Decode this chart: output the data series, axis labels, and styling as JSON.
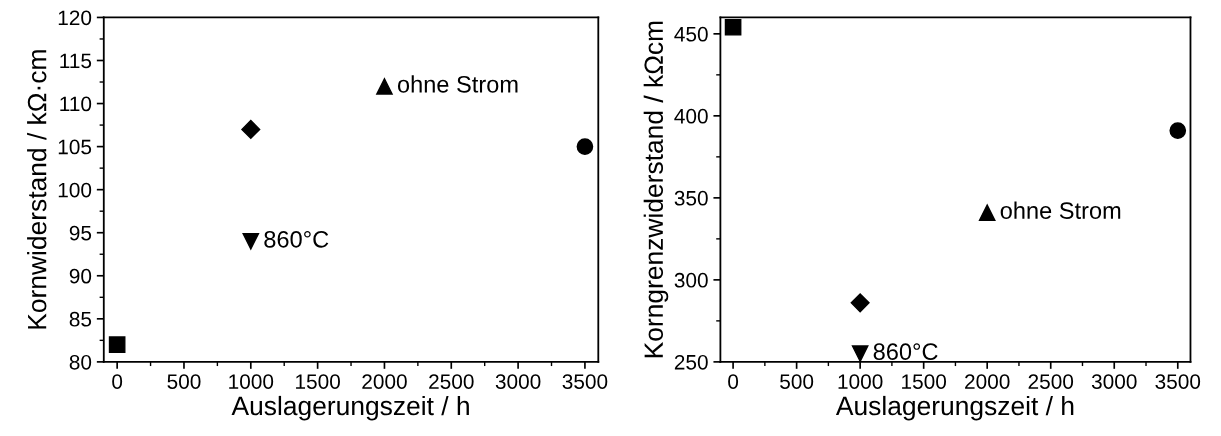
{
  "chart_data": [
    {
      "type": "scatter",
      "xlabel": "Auslagerungszeit / h",
      "ylabel": "Kornwiderstand / kΩ·cm",
      "xlim": [
        -100,
        3600
      ],
      "xticks": [
        0,
        500,
        1000,
        1500,
        2000,
        2500,
        3000,
        3500
      ],
      "ylim": [
        80,
        120
      ],
      "yticks": [
        80,
        85,
        90,
        95,
        100,
        105,
        110,
        115,
        120
      ],
      "grid": false,
      "legend": false,
      "series": [
        {
          "x": [
            0
          ],
          "values": [
            82
          ],
          "marker": "square",
          "color": "#000000"
        },
        {
          "x": [
            1000
          ],
          "values": [
            107
          ],
          "marker": "diamond",
          "color": "#000000"
        },
        {
          "name": "860°C",
          "x": [
            1000
          ],
          "values": [
            94
          ],
          "marker": "triangle_down",
          "color": "#000000"
        },
        {
          "name": "ohne Strom",
          "x": [
            2000
          ],
          "values": [
            112
          ],
          "marker": "triangle",
          "color": "#000000"
        },
        {
          "x": [
            3500
          ],
          "values": [
            105
          ],
          "marker": "circle",
          "color": "#000000"
        }
      ]
    },
    {
      "type": "scatter",
      "xlabel": "Auslagerungszeit / h",
      "ylabel": "Korngrenzwiderstand / kΩcm",
      "xlim": [
        -100,
        3600
      ],
      "xticks": [
        0,
        500,
        1000,
        1500,
        2000,
        2500,
        3000,
        3500
      ],
      "ylim": [
        250,
        460
      ],
      "yticks": [
        250,
        300,
        350,
        400,
        450
      ],
      "grid": false,
      "legend": false,
      "series": [
        {
          "x": [
            0
          ],
          "values": [
            454
          ],
          "marker": "square",
          "color": "#000000"
        },
        {
          "x": [
            1000
          ],
          "values": [
            286
          ],
          "marker": "diamond",
          "color": "#000000"
        },
        {
          "name": "860°C",
          "x": [
            1000
          ],
          "values": [
            255
          ],
          "marker": "triangle_down",
          "color": "#000000"
        },
        {
          "name": "ohne Strom",
          "x": [
            2000
          ],
          "values": [
            341
          ],
          "marker": "triangle",
          "color": "#000000"
        },
        {
          "x": [
            3500
          ],
          "values": [
            391
          ],
          "marker": "circle",
          "color": "#000000"
        }
      ]
    }
  ]
}
